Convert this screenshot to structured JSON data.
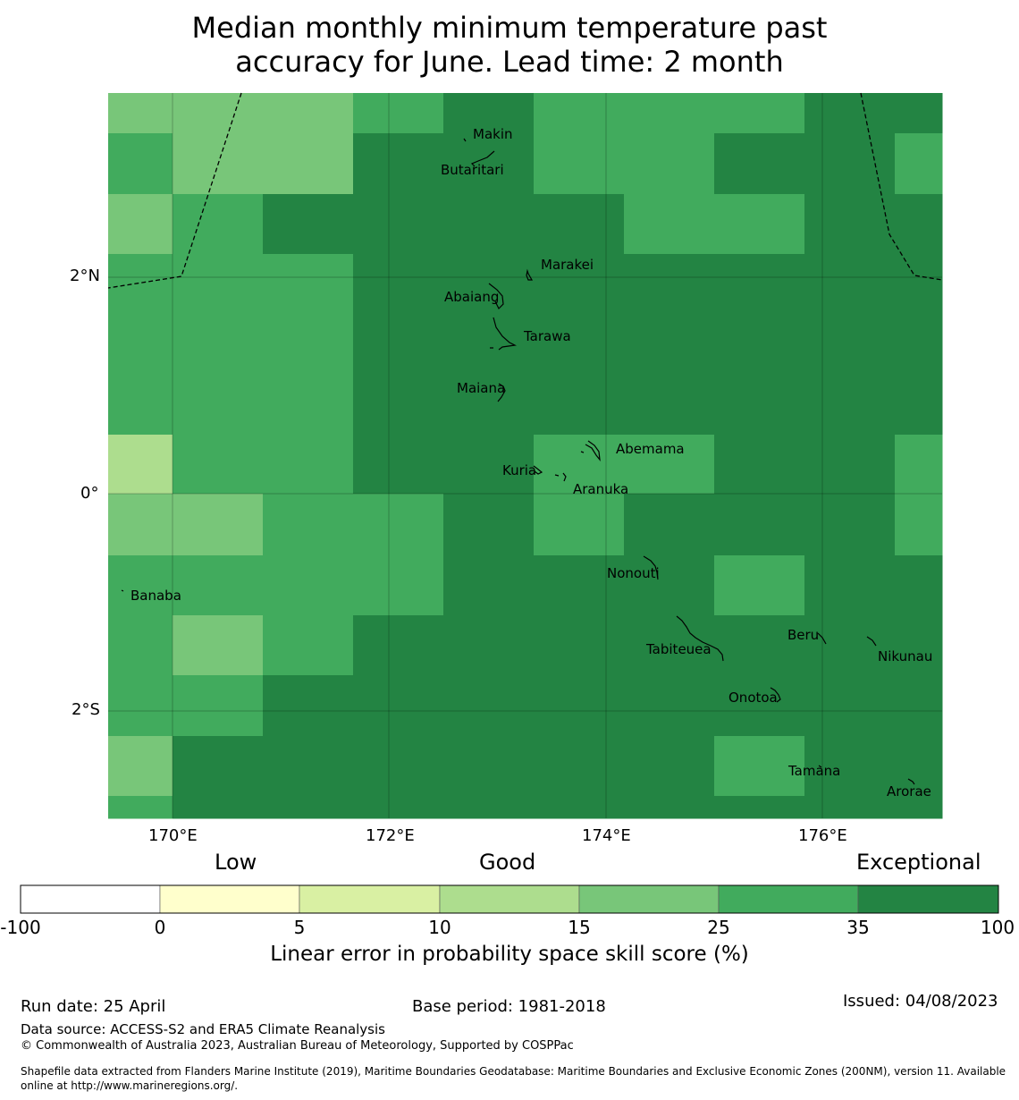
{
  "title_lines": [
    "Median monthly minimum temperature past",
    "accuracy for June. Lead time: 2 month"
  ],
  "axes": {
    "x_ticks": [
      "170°E",
      "172°E",
      "174°E",
      "176°E"
    ],
    "y_ticks": [
      "2°N",
      "0°",
      "2°S"
    ]
  },
  "islands": [
    "Makin",
    "Butaritari",
    "Marakei",
    "Abaiang",
    "Tarawa",
    "Maiana",
    "Abemama",
    "Kuria",
    "Aranuka",
    "Nonouti",
    "Banaba",
    "Tabiteuea",
    "Beru",
    "Nikunau",
    "Onotoa",
    "Tamana",
    "Arorae"
  ],
  "legend": {
    "categories": [
      "Low",
      "Good",
      "Exceptional"
    ],
    "ticks": [
      "-100",
      "0",
      "5",
      "10",
      "15",
      "25",
      "35",
      "100"
    ],
    "colors": [
      "#ffffff",
      "#ffffcc",
      "#d9f0a3",
      "#addd8e",
      "#78c679",
      "#41ab5d",
      "#238443"
    ],
    "label": "Linear error in probability space skill score (%)"
  },
  "colors": {
    "exceptional": "#238443",
    "good_high": "#41ab5d",
    "good_mid": "#78c679",
    "good_low": "#addd8e"
  },
  "footer": {
    "run_date": "Run date: 25 April",
    "base_period": "Base period: 1981-2018",
    "issued": "Issued: 04/08/2023",
    "data_source": "Data source: ACCESS-S2 and ERA5 Climate Reanalysis",
    "copyright": "© Commonwealth of Australia 2023, Australian Bureau of Meteorology, Supported by COSPPac",
    "shapefile_1": "Shapefile data extracted from Flanders Marine Institute (2019), Maritime Boundaries Geodatabase: Maritime Boundaries and Exclusive Economic Zones (200NM), version 11. Available",
    "shapefile_2": "online at http://www.marineregions.org/."
  },
  "skill_grid": [
    [
      "good_mid",
      "good_mid",
      "good_mid",
      "good_high",
      "exceptional",
      "good_high",
      "good_high",
      "good_high",
      "exceptional",
      "exceptional"
    ],
    [
      "good_high",
      "good_mid",
      "good_mid",
      "exceptional",
      "exceptional",
      "good_high",
      "good_high",
      "exceptional",
      "exceptional",
      "good_high"
    ],
    [
      "good_mid",
      "good_high",
      "exceptional",
      "exceptional",
      "exceptional",
      "exceptional",
      "good_high",
      "good_high",
      "exceptional",
      "exceptional"
    ],
    [
      "good_high",
      "good_high",
      "good_high",
      "exceptional",
      "exceptional",
      "exceptional",
      "exceptional",
      "exceptional",
      "exceptional",
      "exceptional"
    ],
    [
      "good_high",
      "good_high",
      "good_high",
      "exceptional",
      "exceptional",
      "exceptional",
      "exceptional",
      "exceptional",
      "exceptional",
      "exceptional"
    ],
    [
      "good_high",
      "good_high",
      "good_high",
      "exceptional",
      "exceptional",
      "exceptional",
      "exceptional",
      "exceptional",
      "exceptional",
      "exceptional"
    ],
    [
      "good_low",
      "good_high",
      "good_high",
      "exceptional",
      "exceptional",
      "good_high",
      "good_high",
      "exceptional",
      "exceptional",
      "good_high"
    ],
    [
      "good_mid",
      "good_mid",
      "good_high",
      "good_high",
      "exceptional",
      "good_high",
      "exceptional",
      "exceptional",
      "exceptional",
      "good_high"
    ],
    [
      "good_high",
      "good_high",
      "good_high",
      "good_high",
      "exceptional",
      "exceptional",
      "exceptional",
      "good_high",
      "exceptional",
      "exceptional"
    ],
    [
      "good_high",
      "good_mid",
      "good_high",
      "exceptional",
      "exceptional",
      "exceptional",
      "exceptional",
      "exceptional",
      "exceptional",
      "exceptional"
    ],
    [
      "good_high",
      "good_high",
      "exceptional",
      "exceptional",
      "exceptional",
      "exceptional",
      "exceptional",
      "exceptional",
      "exceptional",
      "exceptional"
    ],
    [
      "good_mid",
      "exceptional",
      "exceptional",
      "exceptional",
      "exceptional",
      "exceptional",
      "exceptional",
      "good_high",
      "exceptional",
      "exceptional"
    ],
    [
      "good_high",
      "exceptional",
      "exceptional",
      "exceptional",
      "exceptional",
      "exceptional",
      "exceptional",
      "exceptional",
      "exceptional",
      "exceptional"
    ]
  ]
}
